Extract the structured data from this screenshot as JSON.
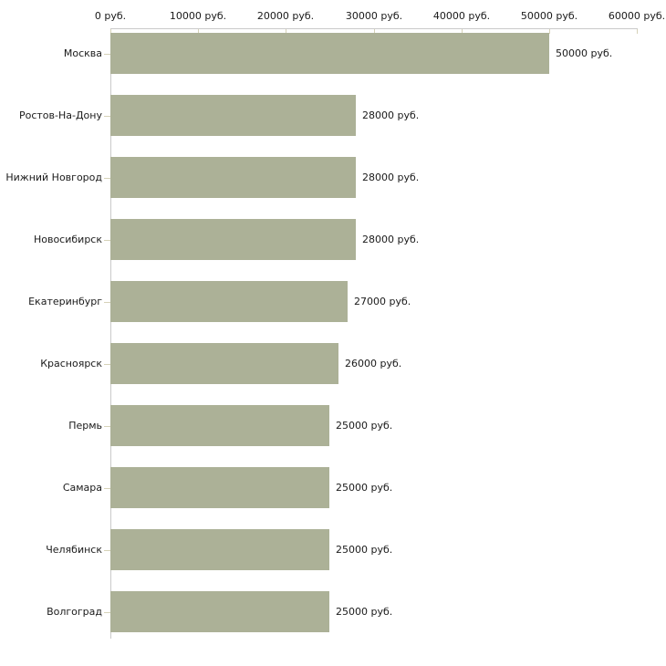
{
  "chart_data": {
    "type": "bar",
    "orientation": "horizontal",
    "title": "",
    "xlabel": "",
    "ylabel": "",
    "grid": false,
    "legend": false,
    "categories": [
      "Москва",
      "Ростов-На-Дону",
      "Нижний Новгород",
      "Новосибирск",
      "Екатеринбург",
      "Красноярск",
      "Пермь",
      "Самара",
      "Челябинск",
      "Волгоград"
    ],
    "values": [
      50000,
      28000,
      28000,
      28000,
      27000,
      26000,
      25000,
      25000,
      25000,
      25000
    ],
    "value_labels": [
      "50000 руб.",
      "28000 руб.",
      "28000 руб.",
      "28000 руб.",
      "27000 руб.",
      "26000 руб.",
      "25000 руб.",
      "25000 руб.",
      "25000 руб.",
      "25000 руб."
    ],
    "x_axis": {
      "position": "top",
      "min": 0,
      "max": 60000,
      "ticks": [
        0,
        10000,
        20000,
        30000,
        40000,
        50000,
        60000
      ],
      "tick_labels": [
        "0 руб.",
        "10000 руб.",
        "20000 руб.",
        "30000 руб.",
        "40000 руб.",
        "50000 руб.",
        "60000 руб."
      ]
    },
    "colors": {
      "bar": "#acb197",
      "axis_line": "#c9c9c9",
      "tick_mark": "#d6d2b8",
      "text": "#1a1a1a",
      "background": "#ffffff"
    }
  }
}
